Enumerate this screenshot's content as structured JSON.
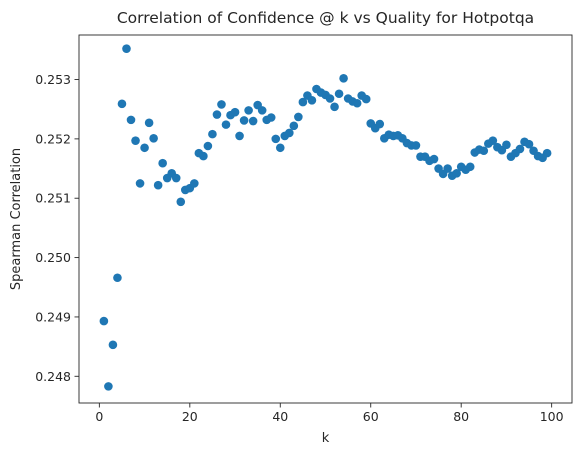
{
  "chart_data": {
    "type": "scatter",
    "title": "Correlation of Confidence @ k vs Quality for Hotpotqa",
    "xlabel": "k",
    "ylabel": "Spearman Correlation",
    "xlim": [
      -4.5,
      104.5
    ],
    "ylim": [
      0.24755,
      0.25375
    ],
    "x_ticks": [
      0,
      20,
      40,
      60,
      80,
      100
    ],
    "y_ticks": [
      0.248,
      0.249,
      0.25,
      0.251,
      0.252,
      0.253
    ],
    "y_tick_labels": [
      "0.248",
      "0.249",
      "0.250",
      "0.251",
      "0.252",
      "0.253"
    ],
    "grid": false,
    "marker_color": "#1f77b4",
    "series": [
      {
        "x": [
          1,
          2,
          3,
          4,
          5,
          6,
          7,
          8,
          9,
          10,
          11,
          12,
          13,
          14,
          15,
          16,
          17,
          18,
          19,
          20,
          21,
          22,
          23,
          24,
          25,
          26,
          27,
          28,
          29,
          30,
          31,
          32,
          33,
          34,
          35,
          36,
          37,
          38,
          39,
          40,
          41,
          42,
          43,
          44,
          45,
          46,
          47,
          48,
          49,
          50,
          51,
          52,
          53,
          54,
          55,
          56,
          57,
          58,
          59,
          60,
          61,
          62,
          63,
          64,
          65,
          66,
          67,
          68,
          69,
          70,
          71,
          72,
          73,
          74,
          75,
          76,
          77,
          78,
          79,
          80,
          81,
          82,
          83,
          84,
          85,
          86,
          87,
          88,
          89,
          90,
          91,
          92,
          93,
          94,
          95,
          96,
          97,
          98,
          99
        ],
        "y": [
          0.24893,
          0.24783,
          0.24853,
          0.24966,
          0.25259,
          0.25352,
          0.25232,
          0.25197,
          0.25125,
          0.25185,
          0.25227,
          0.25201,
          0.25122,
          0.25159,
          0.25134,
          0.25142,
          0.25134,
          0.25094,
          0.25114,
          0.25117,
          0.25125,
          0.25176,
          0.25171,
          0.25188,
          0.25208,
          0.25241,
          0.25258,
          0.25224,
          0.2524,
          0.25245,
          0.25205,
          0.25231,
          0.25248,
          0.2523,
          0.25257,
          0.25248,
          0.25232,
          0.25236,
          0.252,
          0.25185,
          0.25205,
          0.2521,
          0.25222,
          0.25237,
          0.25262,
          0.25273,
          0.25265,
          0.25284,
          0.25278,
          0.25274,
          0.25268,
          0.25254,
          0.25276,
          0.25302,
          0.25268,
          0.25263,
          0.2526,
          0.25273,
          0.25267,
          0.25226,
          0.25218,
          0.25225,
          0.25201,
          0.25207,
          0.25205,
          0.25206,
          0.25201,
          0.25193,
          0.25189,
          0.25189,
          0.2517,
          0.2517,
          0.25163,
          0.25166,
          0.2515,
          0.25141,
          0.2515,
          0.25138,
          0.25142,
          0.25153,
          0.25148,
          0.25153,
          0.25177,
          0.25182,
          0.2518,
          0.25192,
          0.25197,
          0.25186,
          0.25181,
          0.2519,
          0.2517,
          0.25176,
          0.25183,
          0.25195,
          0.25191,
          0.2518,
          0.25171,
          0.25168,
          0.25176
        ]
      }
    ]
  }
}
